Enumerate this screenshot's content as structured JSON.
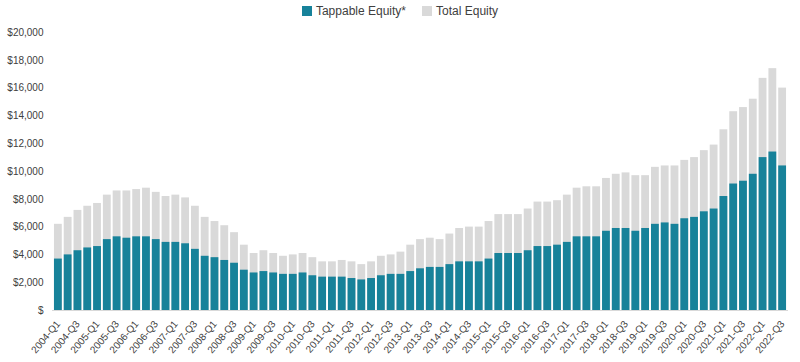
{
  "chart_data": {
    "type": "bar",
    "stacked": false,
    "grid": false,
    "legend": "top",
    "categories": [
      "2004-Q1",
      null,
      "2004-Q3",
      null,
      "2005-Q1",
      null,
      "2005-Q3",
      null,
      "2006-Q1",
      null,
      "2006-Q3",
      null,
      "2007-Q1",
      null,
      "2007-Q3",
      null,
      "2008-Q1",
      null,
      "2008-Q3",
      null,
      "2009-Q1",
      null,
      "2009-Q3",
      null,
      "2010-Q1",
      null,
      "2010-Q3",
      null,
      "2011-Q1",
      null,
      "2011-Q3",
      null,
      "2012-Q1",
      null,
      "2012-Q3",
      null,
      "2013-Q1",
      null,
      "2013-Q3",
      null,
      "2014-Q1",
      null,
      "2014-Q3",
      null,
      "2015-Q1",
      null,
      "2015-Q3",
      null,
      "2016-Q1",
      null,
      "2016-Q3",
      null,
      "2017-Q1",
      null,
      "2017-Q3",
      null,
      "2018-Q1",
      null,
      "2018-Q3",
      null,
      "2019-Q1",
      null,
      "2019-Q3",
      null,
      "2020-Q1",
      null,
      "2020-Q3",
      null,
      "2021-Q1",
      null,
      "2021-Q3",
      null,
      "2022-Q1",
      null,
      "2022-Q3"
    ],
    "series": [
      {
        "name": "Total Equity",
        "color": "#d9d9d9",
        "values": [
          6200,
          6700,
          7200,
          7500,
          7700,
          8300,
          8600,
          8600,
          8700,
          8800,
          8500,
          8200,
          8300,
          8100,
          7500,
          6700,
          6400,
          6100,
          5600,
          4700,
          4100,
          4300,
          4100,
          3900,
          4000,
          4100,
          3800,
          3500,
          3500,
          3600,
          3500,
          3300,
          3500,
          3900,
          4000,
          4200,
          4700,
          5100,
          5200,
          5100,
          5500,
          5900,
          6000,
          6000,
          6400,
          6900,
          6900,
          6900,
          7300,
          7800,
          7800,
          7900,
          8300,
          8800,
          8900,
          8900,
          9500,
          9800,
          9900,
          9700,
          9700,
          10300,
          10400,
          10400,
          10800,
          11000,
          11500,
          11900,
          13000,
          14300,
          14600,
          15200,
          16700,
          17400,
          16000
        ]
      },
      {
        "name": "Tappable Equity*",
        "color": "#17829a",
        "values": [
          3700,
          4000,
          4300,
          4500,
          4600,
          5100,
          5300,
          5200,
          5300,
          5300,
          5100,
          4900,
          4900,
          4800,
          4400,
          3900,
          3800,
          3600,
          3400,
          2900,
          2700,
          2800,
          2700,
          2600,
          2600,
          2700,
          2500,
          2400,
          2400,
          2400,
          2300,
          2200,
          2300,
          2500,
          2600,
          2600,
          2800,
          3000,
          3100,
          3100,
          3300,
          3500,
          3500,
          3500,
          3700,
          4100,
          4100,
          4100,
          4300,
          4600,
          4600,
          4700,
          4900,
          5300,
          5300,
          5300,
          5700,
          5900,
          5900,
          5700,
          5900,
          6200,
          6300,
          6200,
          6600,
          6700,
          7100,
          7300,
          8200,
          9100,
          9300,
          9800,
          11000,
          11400,
          10400
        ]
      }
    ],
    "ylim": [
      0,
      20000
    ],
    "yticks": [
      {
        "value": 0,
        "label": "$"
      },
      {
        "value": 2000,
        "label": "$2,000"
      },
      {
        "value": 4000,
        "label": "$4,000"
      },
      {
        "value": 6000,
        "label": "$6,000"
      },
      {
        "value": 8000,
        "label": "$8,000"
      },
      {
        "value": 10000,
        "label": "$10,000"
      },
      {
        "value": 12000,
        "label": "$12,000"
      },
      {
        "value": 14000,
        "label": "$14,000"
      },
      {
        "value": 16000,
        "label": "$16,000"
      },
      {
        "value": 18000,
        "label": "$18,000"
      },
      {
        "value": 20000,
        "label": "$20,000"
      }
    ]
  }
}
